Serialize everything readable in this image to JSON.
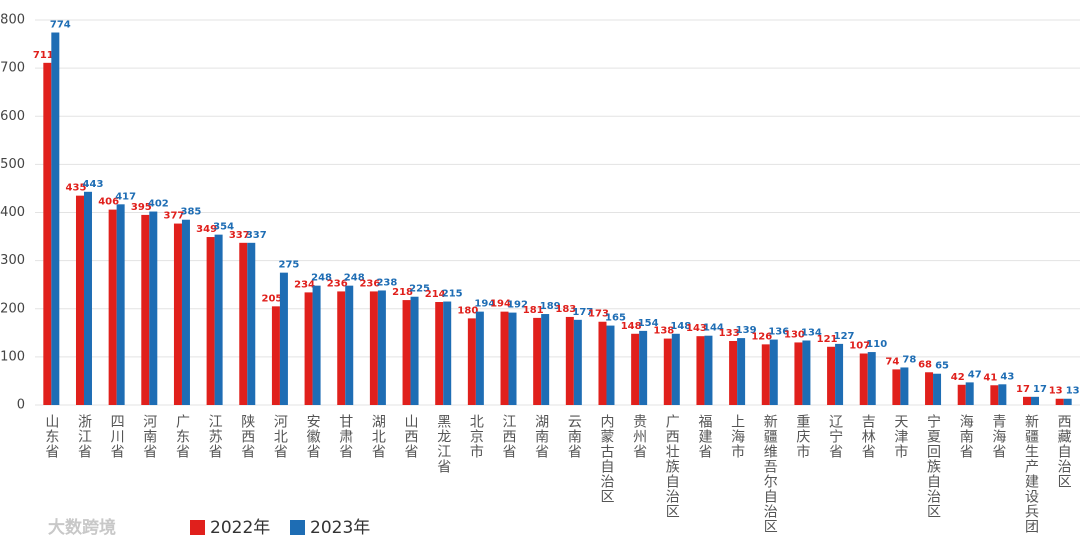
{
  "chart_data": {
    "type": "bar",
    "categories": [
      "山东省",
      "浙江省",
      "四川省",
      "河南省",
      "广东省",
      "江苏省",
      "陕西省",
      "河北省",
      "安徽省",
      "甘肃省",
      "湖北省",
      "山西省",
      "黑龙江省",
      "北京市",
      "江西省",
      "湖南省",
      "云南省",
      "内蒙古自治区",
      "贵州省",
      "广西壮族自治区",
      "福建省",
      "上海市",
      "新疆维吾尔自治区",
      "重庆市",
      "辽宁省",
      "吉林省",
      "天津市",
      "宁夏回族自治区",
      "海南省",
      "青海省",
      "新疆生产建设兵团",
      "西藏自治区"
    ],
    "series": [
      {
        "name": "2022年",
        "color": "#e0201c",
        "values": [
          711,
          435,
          406,
          395,
          377,
          349,
          337,
          205,
          234,
          236,
          236,
          218,
          214,
          180,
          194,
          181,
          183,
          173,
          148,
          138,
          143,
          133,
          126,
          130,
          121,
          107,
          74,
          68,
          42,
          41,
          17,
          13
        ]
      },
      {
        "name": "2023年",
        "color": "#1e6db4",
        "values": [
          774,
          443,
          417,
          402,
          385,
          354,
          337,
          275,
          248,
          248,
          238,
          225,
          215,
          194,
          192,
          189,
          177,
          165,
          154,
          148,
          144,
          139,
          136,
          134,
          127,
          110,
          78,
          65,
          47,
          43,
          17,
          13
        ]
      }
    ],
    "ylim": [
      0,
      800
    ],
    "yticks": [
      0,
      100,
      200,
      300,
      400,
      500,
      600,
      700,
      800
    ],
    "grid": true,
    "watermark": "大数跨境"
  }
}
